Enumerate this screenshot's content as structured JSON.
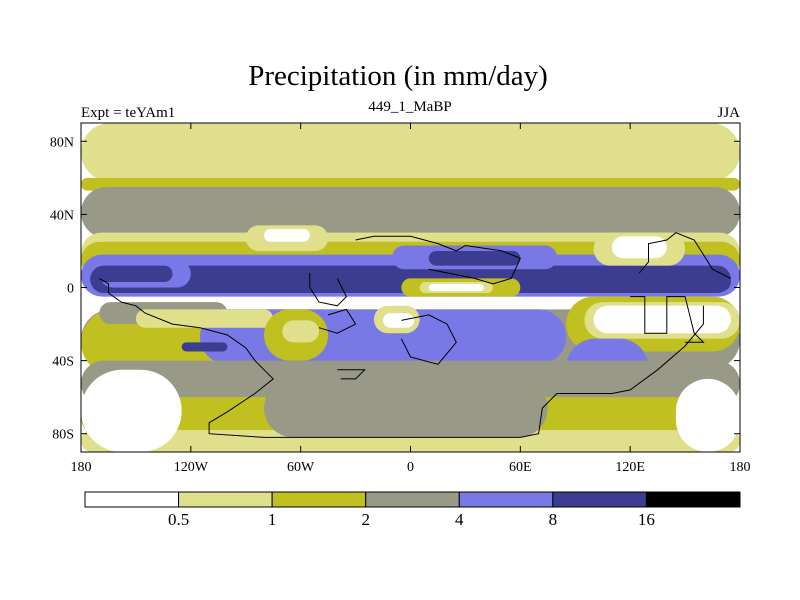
{
  "chart_data": {
    "type": "heatmap",
    "title": "Precipitation (in mm/day)",
    "subtitle_left": "Expt = teYAm1",
    "subtitle_center": "449_1_MaBP",
    "subtitle_right": "JJA",
    "xlim": [
      -180,
      180
    ],
    "ylim": [
      -90,
      90
    ],
    "x_ticks": [
      {
        "value": -180,
        "label": "180"
      },
      {
        "value": -120,
        "label": "120W"
      },
      {
        "value": -60,
        "label": "60W"
      },
      {
        "value": 0,
        "label": "0"
      },
      {
        "value": 60,
        "label": "60E"
      },
      {
        "value": 120,
        "label": "120E"
      },
      {
        "value": 180,
        "label": "180"
      }
    ],
    "y_ticks": [
      {
        "value": 80,
        "label": "80N"
      },
      {
        "value": 40,
        "label": "40N"
      },
      {
        "value": 0,
        "label": "0"
      },
      {
        "value": -40,
        "label": "40S"
      },
      {
        "value": -80,
        "label": "80S"
      }
    ],
    "levels": [
      {
        "range": "<0.5",
        "color": "#ffffff"
      },
      {
        "range": "0.5-1",
        "color": "#e0e08c"
      },
      {
        "range": "1-2",
        "color": "#c0c020"
      },
      {
        "range": "2-4",
        "color": "#999987"
      },
      {
        "range": "4-8",
        "color": "#7878e6"
      },
      {
        "range": "8-16",
        "color": "#3c3c90"
      },
      {
        "range": ">16",
        "color": "#000000"
      }
    ],
    "colorbar_labels": [
      "0.5",
      "1",
      "2",
      "4",
      "8",
      "16"
    ],
    "fields": [
      {
        "level": 1,
        "lon": [
          -180,
          180
        ],
        "lat": [
          58,
          90
        ]
      },
      {
        "level": 2,
        "lon": [
          -180,
          180
        ],
        "lat": [
          53,
          60
        ]
      },
      {
        "level": 3,
        "lon": [
          -180,
          180
        ],
        "lat": [
          27,
          55
        ]
      },
      {
        "level": 1,
        "lon": [
          -180,
          180
        ],
        "lat": [
          8,
          30
        ]
      },
      {
        "level": 2,
        "lon": [
          -180,
          180
        ],
        "lat": [
          5,
          25
        ]
      },
      {
        "level": 4,
        "lon": [
          -180,
          180
        ],
        "lat": [
          -5,
          18
        ]
      },
      {
        "level": 5,
        "lon": [
          -175,
          175
        ],
        "lat": [
          -3,
          12
        ]
      },
      {
        "level": 3,
        "lon": [
          -180,
          180
        ],
        "lat": [
          -45,
          -12
        ]
      },
      {
        "level": 2,
        "lon": [
          -180,
          -50
        ],
        "lat": [
          -48,
          -12
        ]
      },
      {
        "level": 4,
        "lon": [
          -115,
          85
        ],
        "lat": [
          -42,
          -12
        ]
      },
      {
        "level": 3,
        "lon": [
          -170,
          -100
        ],
        "lat": [
          -20,
          -8
        ]
      },
      {
        "level": 1,
        "lon": [
          -150,
          -75
        ],
        "lat": [
          -22,
          -12
        ]
      },
      {
        "level": 2,
        "lon": [
          -80,
          -45
        ],
        "lat": [
          -40,
          -12
        ]
      },
      {
        "level": 1,
        "lon": [
          -70,
          -50
        ],
        "lat": [
          -30,
          -18
        ]
      },
      {
        "level": 2,
        "lon": [
          85,
          180
        ],
        "lat": [
          -35,
          -5
        ]
      },
      {
        "level": 1,
        "lon": [
          95,
          180
        ],
        "lat": [
          -28,
          -8
        ]
      },
      {
        "level": 0,
        "lon": [
          100,
          175
        ],
        "lat": [
          -25,
          -10
        ]
      },
      {
        "level": 4,
        "lon": [
          85,
          130
        ],
        "lat": [
          -60,
          -28
        ]
      },
      {
        "level": 3,
        "lon": [
          -180,
          180
        ],
        "lat": [
          -65,
          -40
        ]
      },
      {
        "level": 2,
        "lon": [
          -180,
          180
        ],
        "lat": [
          -82,
          -60
        ]
      },
      {
        "level": 1,
        "lon": [
          -180,
          180
        ],
        "lat": [
          -90,
          -78
        ]
      },
      {
        "level": 0,
        "lon": [
          -180,
          -125
        ],
        "lat": [
          -90,
          -45
        ]
      },
      {
        "level": 0,
        "lon": [
          145,
          180
        ],
        "lat": [
          -90,
          -50
        ]
      },
      {
        "level": 3,
        "lon": [
          -80,
          75
        ],
        "lat": [
          -82,
          -50
        ]
      },
      {
        "level": 1,
        "lon": [
          -90,
          -45
        ],
        "lat": [
          20,
          34
        ]
      },
      {
        "level": 0,
        "lon": [
          -80,
          -55
        ],
        "lat": [
          25,
          32
        ]
      },
      {
        "level": 1,
        "lon": [
          100,
          150
        ],
        "lat": [
          12,
          30
        ]
      },
      {
        "level": 0,
        "lon": [
          110,
          140
        ],
        "lat": [
          16,
          28
        ]
      },
      {
        "level": 4,
        "lon": [
          -10,
          80
        ],
        "lat": [
          10,
          23
        ]
      },
      {
        "level": 5,
        "lon": [
          10,
          60
        ],
        "lat": [
          12,
          20
        ]
      },
      {
        "level": 4,
        "lon": [
          -170,
          -120
        ],
        "lat": [
          0,
          15
        ]
      },
      {
        "level": 5,
        "lon": [
          -172,
          -130
        ],
        "lat": [
          3,
          12
        ]
      },
      {
        "level": 5,
        "lon": [
          120,
          175
        ],
        "lat": [
          -2,
          8
        ]
      },
      {
        "level": 2,
        "lon": [
          -5,
          60
        ],
        "lat": [
          -5,
          5
        ]
      },
      {
        "level": 1,
        "lon": [
          5,
          45
        ],
        "lat": [
          -3,
          3
        ]
      },
      {
        "level": 0,
        "lon": [
          10,
          40
        ],
        "lat": [
          -2,
          2
        ]
      },
      {
        "level": 1,
        "lon": [
          -20,
          5
        ],
        "lat": [
          -25,
          -10
        ]
      },
      {
        "level": 0,
        "lon": [
          -15,
          2
        ],
        "lat": [
          -22,
          -14
        ]
      },
      {
        "level": 5,
        "lon": [
          -125,
          -100
        ],
        "lat": [
          -35,
          -30
        ]
      }
    ],
    "land_outlines": [
      [
        [
          -170,
          5
        ],
        [
          -165,
          2
        ],
        [
          -165,
          -3
        ],
        [
          -158,
          -8
        ],
        [
          -150,
          -10
        ],
        [
          -145,
          -14
        ],
        [
          -130,
          -20
        ],
        [
          -115,
          -22
        ],
        [
          -100,
          -26
        ],
        [
          -90,
          -33
        ],
        [
          -85,
          -40
        ],
        [
          -80,
          -45
        ],
        [
          -75,
          -50
        ],
        [
          -85,
          -58
        ],
        [
          -100,
          -68
        ],
        [
          -110,
          -74
        ],
        [
          -110,
          -80
        ],
        [
          -80,
          -82
        ],
        [
          -30,
          -82
        ],
        [
          10,
          -82
        ],
        [
          60,
          -82
        ],
        [
          70,
          -80
        ],
        [
          72,
          -66
        ],
        [
          80,
          -58
        ],
        [
          110,
          -58
        ],
        [
          120,
          -56
        ],
        [
          135,
          -45
        ],
        [
          150,
          -32
        ],
        [
          160,
          -20
        ],
        [
          160,
          -10
        ]
      ],
      [
        [
          -30,
          26
        ],
        [
          -20,
          28
        ],
        [
          0,
          28
        ],
        [
          15,
          24
        ],
        [
          25,
          20
        ],
        [
          30,
          23
        ],
        [
          50,
          20
        ],
        [
          60,
          16
        ],
        [
          55,
          5
        ],
        [
          45,
          2
        ],
        [
          35,
          5
        ],
        [
          20,
          8
        ],
        [
          10,
          10
        ]
      ],
      [
        [
          125,
          8
        ],
        [
          130,
          14
        ],
        [
          130,
          24
        ],
        [
          140,
          26
        ],
        [
          145,
          30
        ],
        [
          155,
          26
        ],
        [
          160,
          18
        ],
        [
          165,
          10
        ],
        [
          175,
          5
        ]
      ],
      [
        [
          -55,
          8
        ],
        [
          -55,
          0
        ],
        [
          -50,
          -8
        ],
        [
          -40,
          -10
        ],
        [
          -35,
          -5
        ],
        [
          -40,
          5
        ]
      ],
      [
        [
          -45,
          -15
        ],
        [
          -35,
          -12
        ],
        [
          -30,
          -20
        ],
        [
          -40,
          -25
        ],
        [
          -50,
          -22
        ]
      ],
      [
        [
          -5,
          -18
        ],
        [
          10,
          -15
        ],
        [
          20,
          -20
        ],
        [
          25,
          -30
        ],
        [
          15,
          -42
        ],
        [
          0,
          -38
        ],
        [
          -5,
          -28
        ]
      ],
      [
        [
          -40,
          -45
        ],
        [
          -25,
          -45
        ],
        [
          -30,
          -50
        ],
        [
          -38,
          -50
        ]
      ],
      [
        [
          120,
          -5
        ],
        [
          128,
          -5
        ],
        [
          128,
          -25
        ],
        [
          140,
          -25
        ],
        [
          140,
          -5
        ],
        [
          150,
          -5
        ],
        [
          155,
          -25
        ],
        [
          160,
          -30
        ],
        [
          150,
          -30
        ]
      ]
    ]
  }
}
